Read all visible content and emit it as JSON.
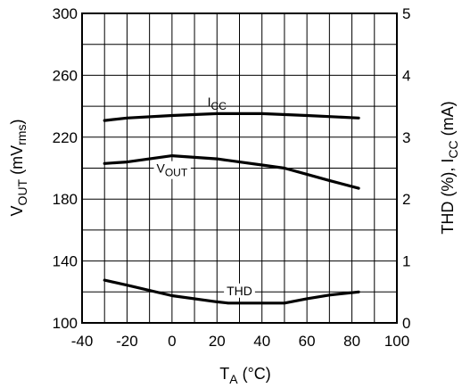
{
  "chart_data": {
    "type": "line",
    "x_axis": {
      "label_main": "T",
      "label_sub": "A",
      "label_unit": " (°C)",
      "range": [
        -40,
        100
      ],
      "ticks": [
        -40,
        -20,
        0,
        20,
        40,
        60,
        80,
        100
      ],
      "grid_step": 10
    },
    "y_left": {
      "label_main": "V",
      "label_sub": "OUT",
      "label_unit": " (mV",
      "label_unit2": "rms",
      "label_unit3": ")",
      "range": [
        100,
        300
      ],
      "ticks": [
        100,
        140,
        180,
        220,
        260,
        300
      ],
      "grid_step": 20
    },
    "y_right": {
      "label_a": "THD (%), I",
      "label_sub": "CC",
      "label_b": " (mA)",
      "range": [
        0,
        5
      ],
      "ticks": [
        0,
        1,
        2,
        3,
        4,
        5
      ]
    },
    "grid": true,
    "series": [
      {
        "name_main": "I",
        "name_sub": "CC",
        "axis": "right",
        "x": [
          -30,
          -20,
          0,
          20,
          40,
          60,
          83
        ],
        "y": [
          3.27,
          3.31,
          3.35,
          3.38,
          3.38,
          3.35,
          3.31
        ]
      },
      {
        "name_main": "V",
        "name_sub": "OUT",
        "axis": "left",
        "x": [
          -30,
          -20,
          0,
          20,
          40,
          50,
          60,
          70,
          83
        ],
        "y": [
          203,
          204,
          208,
          206,
          202,
          200,
          196,
          192,
          187
        ]
      },
      {
        "name_main": "THD",
        "name_sub": "",
        "axis": "right",
        "x": [
          -30,
          -20,
          0,
          20,
          25,
          40,
          50,
          60,
          70,
          83
        ],
        "y": [
          0.69,
          0.61,
          0.44,
          0.34,
          0.32,
          0.32,
          0.32,
          0.39,
          0.45,
          0.5
        ]
      }
    ]
  }
}
